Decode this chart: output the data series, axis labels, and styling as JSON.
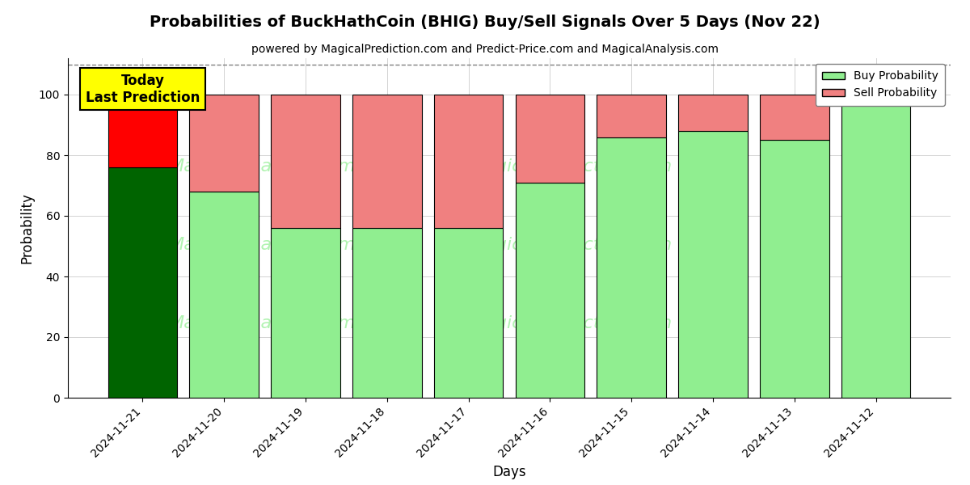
{
  "title": "Probabilities of BuckHathCoin (BHIG) Buy/Sell Signals Over 5 Days (Nov 22)",
  "subtitle": "powered by MagicalPrediction.com and Predict-Price.com and MagicalAnalysis.com",
  "xlabel": "Days",
  "ylabel": "Probability",
  "dates": [
    "2024-11-21",
    "2024-11-20",
    "2024-11-19",
    "2024-11-18",
    "2024-11-17",
    "2024-11-16",
    "2024-11-15",
    "2024-11-14",
    "2024-11-13",
    "2024-11-12"
  ],
  "buy_values": [
    76,
    68,
    56,
    56,
    56,
    71,
    86,
    88,
    85,
    100
  ],
  "sell_values": [
    24,
    32,
    44,
    44,
    44,
    29,
    14,
    12,
    15,
    0
  ],
  "today_buy_color": "#006400",
  "today_sell_color": "#FF0000",
  "buy_color_light": "#90EE90",
  "sell_color_light": "#F08080",
  "bar_edge_color": "#000000",
  "ylim": [
    0,
    112
  ],
  "yticks": [
    0,
    20,
    40,
    60,
    80,
    100
  ],
  "dashed_line_y": 110,
  "watermark_color_1": "#90EE90",
  "watermark_color_2": "#90EE90",
  "today_annotation": "Today\nLast Prediction",
  "legend_buy": "Buy Probability",
  "legend_sell": "Sell Probability",
  "figsize": [
    12,
    6
  ],
  "dpi": 100
}
